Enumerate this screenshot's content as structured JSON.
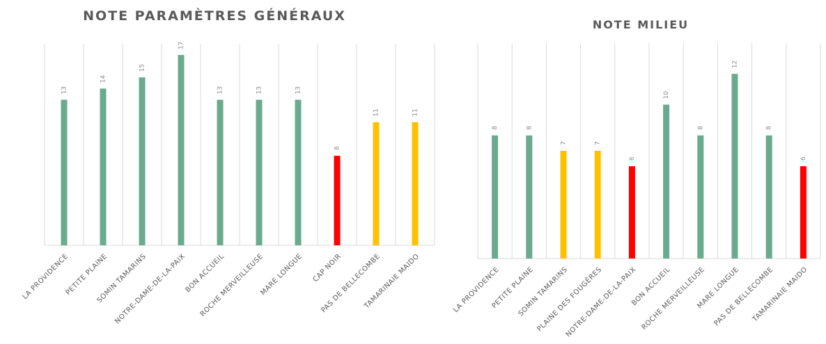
{
  "chart_data": [
    {
      "type": "bar",
      "title": "NOTE PARAMÈTRES GÉNÉRAUX",
      "categories": [
        "LA PROVIDENCE",
        "PETITE PLAINE",
        "SOMIN TAMARINS",
        "NOTRE-DAME-DE-LA-PAIX",
        "BON ACCUEIL",
        "ROCHE MERVEILLEUSE",
        "MARE LONGUE",
        "CAP NOIR",
        "PAS DE BELLECOMBE",
        "TAMARINAIE MAIDO"
      ],
      "values": [
        13,
        14,
        15,
        17,
        13,
        13,
        13,
        8,
        11,
        11
      ],
      "colors": [
        "#6aaa8e",
        "#6aaa8e",
        "#6aaa8e",
        "#6aaa8e",
        "#6aaa8e",
        "#6aaa8e",
        "#6aaa8e",
        "#ff0000",
        "#ffc000",
        "#ffc000"
      ],
      "ylim": [
        0,
        18
      ]
    },
    {
      "type": "bar",
      "title": "NOTE MILIEU",
      "categories": [
        "LA PROVIDENCE",
        "PETITE PLAINE",
        "SOMIN TAMARINS",
        "PLAINE DES FOUGÈRES",
        "NOTRE-DAME-DE-LA-PAIX",
        "BON ACCUEIL",
        "ROCHE MERVEILLEUSE",
        "MARE LONGUE",
        "PAS DE BELLECOMBE",
        "TAMARINAIE MAIDO"
      ],
      "values": [
        8,
        8,
        7,
        7,
        6,
        10,
        8,
        12,
        8,
        6
      ],
      "colors": [
        "#6aaa8e",
        "#6aaa8e",
        "#ffc000",
        "#ffc000",
        "#ff0000",
        "#6aaa8e",
        "#6aaa8e",
        "#6aaa8e",
        "#6aaa8e",
        "#ff0000"
      ],
      "ylim": [
        0,
        14
      ]
    }
  ]
}
